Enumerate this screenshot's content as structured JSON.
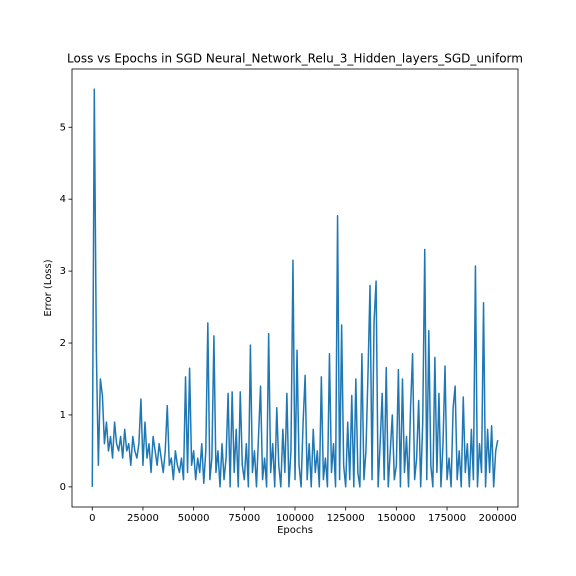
{
  "chart_data": {
    "type": "line",
    "title": "Loss vs Epochs in SGD Neural_Network_Relu_3_Hidden_layers_SGD_uniform",
    "xlabel": "Epochs",
    "ylabel": "Error (Loss)",
    "color": "#1f77b4",
    "x": [
      0,
      1000,
      2000,
      3000,
      4000,
      5000,
      6000,
      7000,
      8000,
      9000,
      10000,
      11000,
      12000,
      13000,
      14000,
      15000,
      16000,
      17000,
      18000,
      19000,
      20000,
      21000,
      22000,
      23000,
      24000,
      25000,
      26000,
      27000,
      28000,
      29000,
      30000,
      31000,
      32000,
      33000,
      34000,
      35000,
      36000,
      37000,
      38000,
      39000,
      40000,
      41000,
      42000,
      43000,
      44000,
      45000,
      46000,
      47000,
      48000,
      49000,
      50000,
      51000,
      52000,
      53000,
      54000,
      55000,
      56000,
      57000,
      58000,
      59000,
      60000,
      61000,
      62000,
      63000,
      64000,
      65000,
      66000,
      67000,
      68000,
      69000,
      70000,
      71000,
      72000,
      73000,
      74000,
      75000,
      76000,
      77000,
      78000,
      79000,
      80000,
      81000,
      82000,
      83000,
      84000,
      85000,
      86000,
      87000,
      88000,
      89000,
      90000,
      91000,
      92000,
      93000,
      94000,
      95000,
      96000,
      97000,
      98000,
      99000,
      100000,
      101000,
      102000,
      103000,
      104000,
      105000,
      106000,
      107000,
      108000,
      109000,
      110000,
      111000,
      112000,
      113000,
      114000,
      115000,
      116000,
      117000,
      118000,
      119000,
      120000,
      121000,
      122000,
      123000,
      124000,
      125000,
      126000,
      127000,
      128000,
      129000,
      130000,
      131000,
      132000,
      133000,
      134000,
      135000,
      136000,
      137000,
      138000,
      139000,
      140000,
      141000,
      142000,
      143000,
      144000,
      145000,
      146000,
      147000,
      148000,
      149000,
      150000,
      151000,
      152000,
      153000,
      154000,
      155000,
      156000,
      157000,
      158000,
      159000,
      160000,
      161000,
      162000,
      163000,
      164000,
      165000,
      166000,
      167000,
      168000,
      169000,
      170000,
      171000,
      172000,
      173000,
      174000,
      175000,
      176000,
      177000,
      178000,
      179000,
      180000,
      181000,
      182000,
      183000,
      184000,
      185000,
      186000,
      187000,
      188000,
      189000,
      190000,
      191000,
      192000,
      193000,
      194000,
      195000,
      196000,
      197000,
      198000,
      199000,
      200000
    ],
    "values": [
      0.0,
      5.53,
      1.9,
      0.3,
      1.5,
      1.27,
      0.6,
      0.9,
      0.5,
      0.7,
      0.4,
      0.9,
      0.6,
      0.5,
      0.7,
      0.4,
      0.8,
      0.5,
      0.6,
      0.3,
      0.7,
      0.5,
      0.4,
      0.6,
      1.22,
      0.3,
      0.9,
      0.4,
      0.6,
      0.2,
      0.7,
      0.5,
      0.3,
      0.6,
      0.4,
      0.2,
      0.5,
      1.13,
      0.3,
      0.4,
      0.1,
      0.5,
      0.3,
      0.2,
      0.4,
      0.1,
      1.53,
      0.2,
      1.65,
      0.3,
      0.5,
      0.1,
      0.4,
      0.2,
      0.6,
      0.05,
      0.5,
      2.28,
      0.1,
      0.4,
      2.1,
      0.2,
      0.5,
      0.0,
      0.6,
      0.1,
      0.4,
      1.3,
      0.0,
      1.32,
      0.2,
      0.8,
      0.0,
      1.32,
      0.3,
      0.1,
      0.6,
      0.0,
      1.97,
      0.2,
      0.5,
      0.0,
      0.7,
      1.4,
      0.1,
      0.4,
      0.0,
      2.13,
      0.2,
      0.6,
      0.0,
      1.1,
      0.3,
      0.0,
      0.8,
      0.2,
      1.3,
      0.0,
      0.5,
      3.15,
      0.1,
      1.9,
      0.3,
      0.0,
      0.9,
      1.55,
      0.1,
      0.6,
      0.0,
      0.8,
      0.2,
      0.5,
      0.0,
      1.53,
      0.1,
      0.4,
      0.0,
      1.85,
      0.2,
      0.6,
      0.0,
      3.77,
      0.1,
      2.25,
      0.3,
      0.0,
      0.9,
      0.1,
      1.27,
      0.0,
      1.5,
      0.2,
      0.0,
      1.85,
      0.1,
      0.5,
      1.57,
      2.8,
      0.1,
      2.3,
      2.86,
      0.0,
      0.6,
      1.3,
      0.1,
      1.66,
      0.0,
      0.5,
      1.0,
      0.1,
      0.3,
      1.63,
      0.0,
      1.5,
      0.2,
      0.7,
      0.0,
      1.1,
      1.85,
      0.1,
      0.4,
      1.2,
      0.0,
      0.9,
      3.3,
      0.1,
      2.17,
      0.3,
      0.0,
      1.8,
      0.2,
      1.3,
      0.0,
      0.6,
      1.68,
      0.1,
      0.4,
      0.0,
      1.1,
      1.4,
      0.1,
      0.5,
      0.0,
      1.25,
      0.2,
      0.6,
      0.0,
      0.8,
      0.1,
      3.07,
      0.0,
      0.6,
      0.2,
      2.56,
      0.0,
      0.8,
      0.2,
      0.85,
      0.0,
      0.5,
      0.65
    ],
    "xlim": [
      -10000,
      210000
    ],
    "ylim": [
      -0.28,
      5.81
    ],
    "xticks": [
      0,
      25000,
      50000,
      75000,
      100000,
      125000,
      150000,
      175000,
      200000
    ],
    "yticks": [
      0,
      1,
      2,
      3,
      4,
      5
    ]
  }
}
